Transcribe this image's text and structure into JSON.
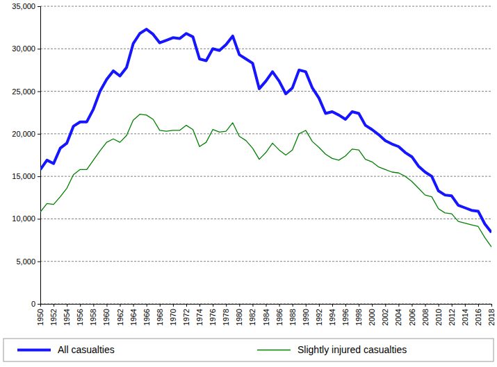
{
  "chart_data": {
    "type": "line",
    "x": [
      1950,
      1951,
      1952,
      1953,
      1954,
      1955,
      1956,
      1957,
      1958,
      1959,
      1960,
      1961,
      1962,
      1963,
      1964,
      1965,
      1966,
      1967,
      1968,
      1969,
      1970,
      1971,
      1972,
      1973,
      1974,
      1975,
      1976,
      1977,
      1978,
      1979,
      1980,
      1981,
      1982,
      1983,
      1984,
      1985,
      1986,
      1987,
      1988,
      1989,
      1990,
      1991,
      1992,
      1993,
      1994,
      1995,
      1996,
      1997,
      1998,
      1999,
      2000,
      2001,
      2002,
      2003,
      2004,
      2005,
      2006,
      2007,
      2008,
      2009,
      2010,
      2011,
      2012,
      2013,
      2014,
      2015,
      2016,
      2017,
      2018
    ],
    "series": [
      {
        "name": "All casualties",
        "color": "#1515ff",
        "line_style": "solid",
        "values": [
          15800,
          16900,
          16500,
          18300,
          18900,
          20900,
          21400,
          21400,
          22900,
          25000,
          26400,
          27400,
          26800,
          27800,
          30600,
          31800,
          32300,
          31700,
          30700,
          31000,
          31300,
          31200,
          31800,
          31400,
          28800,
          28600,
          30000,
          29800,
          30500,
          31500,
          29300,
          28800,
          28300,
          25300,
          26200,
          27300,
          26200,
          24700,
          25400,
          27500,
          27300,
          25400,
          24200,
          22400,
          22600,
          22200,
          21700,
          22600,
          22400,
          21000,
          20500,
          19900,
          19200,
          18800,
          18500,
          17800,
          17300,
          16200,
          15500,
          15000,
          13300,
          12800,
          12700,
          11600,
          11300,
          11000,
          10900,
          9400,
          8400
        ]
      },
      {
        "name": "Slightly injured casualties",
        "color": "#008000",
        "line_style": "solid",
        "values": [
          10800,
          11800,
          11700,
          12600,
          13600,
          15200,
          15800,
          15800,
          16900,
          18000,
          19000,
          19400,
          19000,
          19800,
          21600,
          22300,
          22200,
          21700,
          20400,
          20300,
          20400,
          20400,
          21000,
          20500,
          18500,
          19000,
          20500,
          20200,
          20300,
          21300,
          19700,
          19200,
          18300,
          17000,
          17800,
          18900,
          18100,
          17500,
          18100,
          20000,
          20400,
          19100,
          18400,
          17600,
          17100,
          16900,
          17400,
          18200,
          18100,
          17000,
          16700,
          16100,
          15800,
          15500,
          15400,
          15000,
          14400,
          13600,
          12800,
          12600,
          11200,
          10700,
          10600,
          9700,
          9500,
          9300,
          9100,
          7800,
          6700
        ]
      }
    ],
    "xlim": [
      1950,
      2018
    ],
    "xticks": [
      1950,
      1952,
      1954,
      1956,
      1958,
      1960,
      1962,
      1964,
      1966,
      1968,
      1970,
      1972,
      1974,
      1976,
      1978,
      1980,
      1982,
      1984,
      1986,
      1988,
      1990,
      1992,
      1994,
      1996,
      1998,
      2000,
      2002,
      2004,
      2006,
      2008,
      2010,
      2012,
      2014,
      2016,
      2018
    ],
    "ylim": [
      0,
      35000
    ],
    "yticks": [
      0,
      {
        "value": 5000,
        "label": "5,000"
      },
      {
        "value": 10000,
        "label": "10,000"
      },
      {
        "value": 15000,
        "label": "15,000"
      },
      {
        "value": 20000,
        "label": "20,000"
      },
      {
        "value": 25000,
        "label": "25,000"
      },
      {
        "value": 30000,
        "label": "30,000"
      },
      {
        "value": 35000,
        "label": "35,000"
      }
    ],
    "grid": true,
    "legend": "bottom"
  }
}
